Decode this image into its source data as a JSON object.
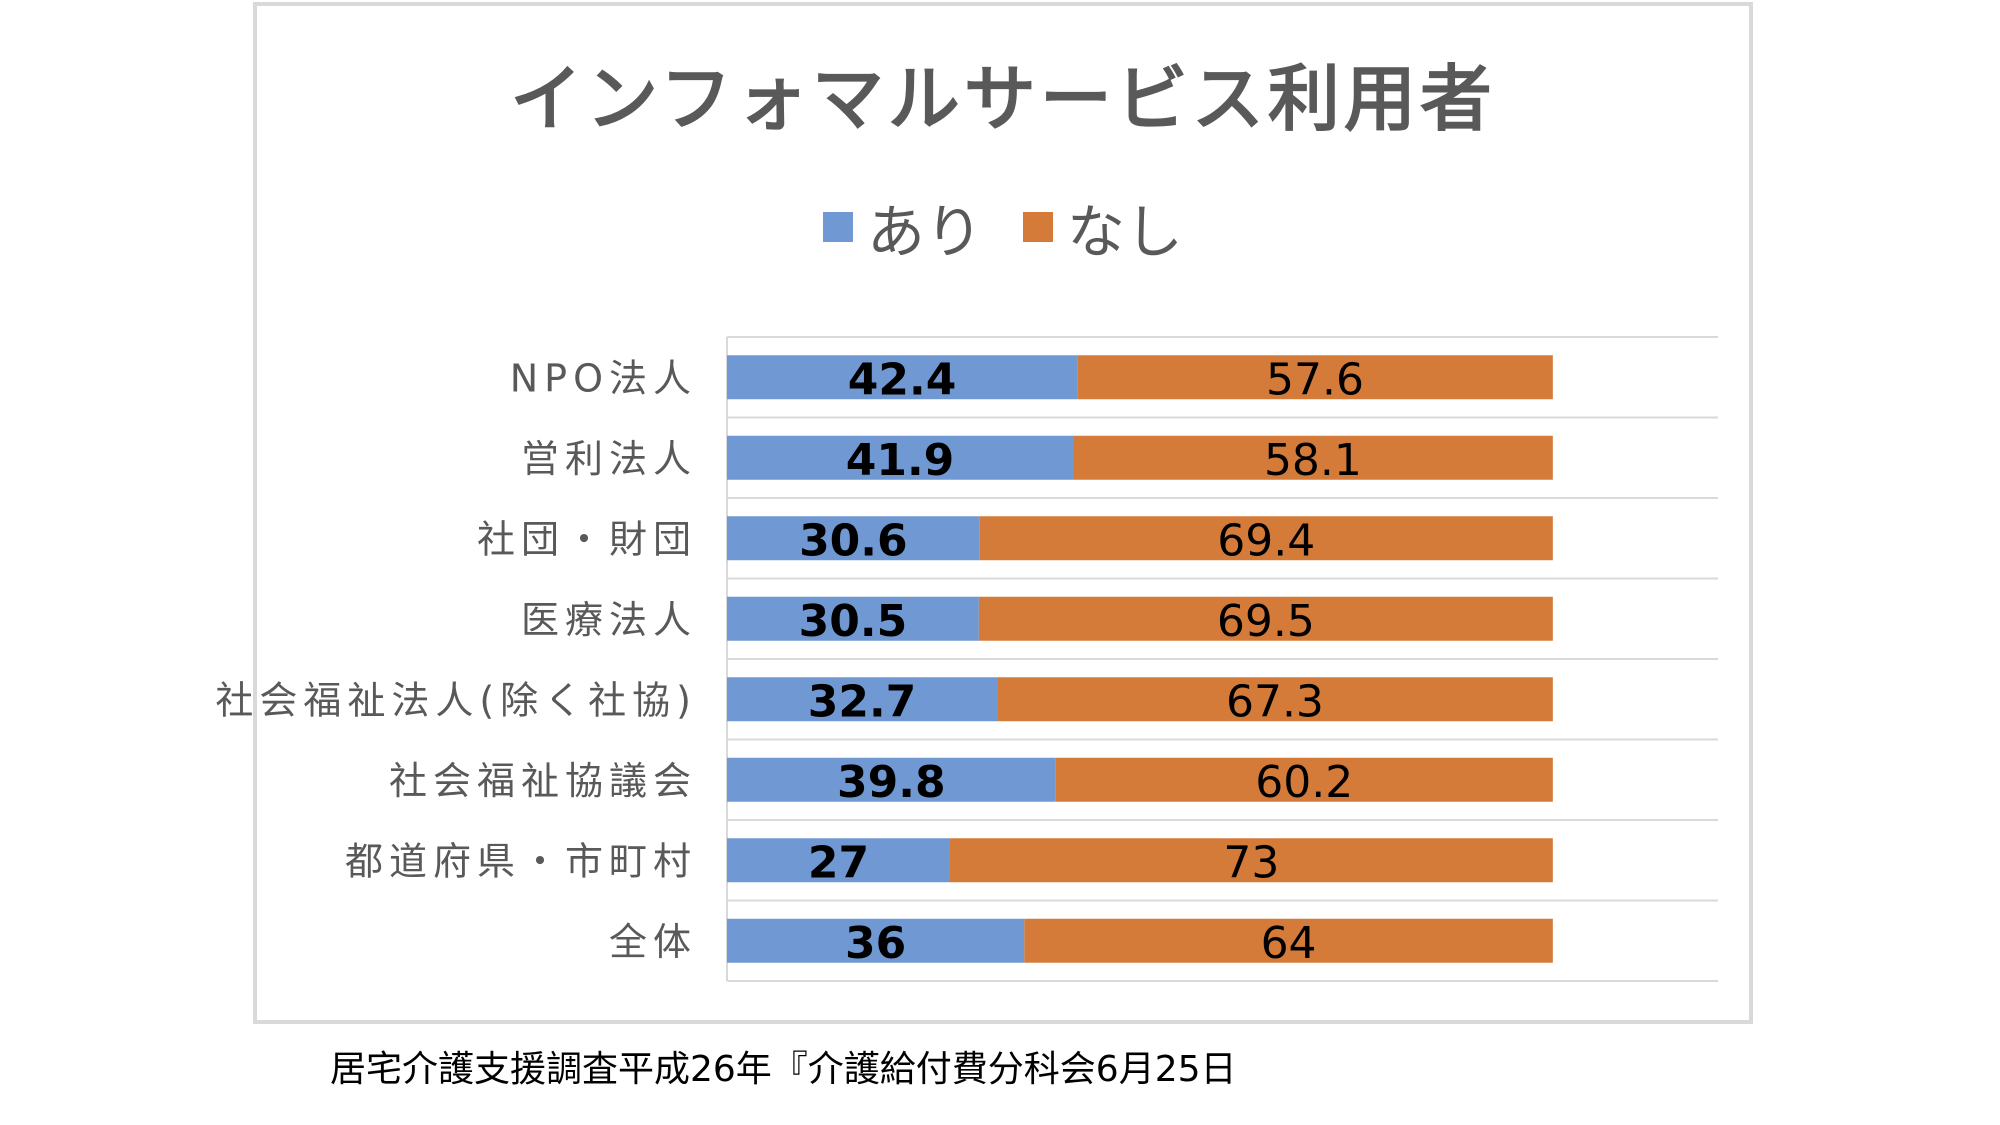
{
  "source_note": "居宅介護支援調査平成26年『介護給付費分科会6月25日",
  "colors": {
    "ari": "#7099d4",
    "nashi": "#d57b39",
    "grid": "#d9d9d9",
    "frame": "#d9d9d9",
    "label": "#595959"
  },
  "chart_data": {
    "type": "bar",
    "orientation": "horizontal",
    "stacked": true,
    "title": "インフォマルサービス利用者",
    "legend": {
      "position": "top"
    },
    "categories": [
      "NPO法人",
      "営利法人",
      "社団・財団",
      "医療法人",
      "社会福祉法人(除く社協)",
      "社会福祉協議会",
      "都道府県・市町村",
      "全体"
    ],
    "series": [
      {
        "name": "あり",
        "color": "#7099d4",
        "values": [
          42.4,
          41.9,
          30.6,
          30.5,
          32.7,
          39.8,
          27,
          36
        ]
      },
      {
        "name": "なし",
        "color": "#d57b39",
        "values": [
          57.6,
          58.1,
          69.4,
          69.5,
          67.3,
          60.2,
          73,
          64
        ]
      }
    ],
    "data_labels": {
      "あり": [
        "42.4",
        "41.9",
        "30.6",
        "30.5",
        "32.7",
        "39.8",
        "27",
        "36"
      ],
      "なし": [
        "57.6",
        "58.1",
        "69.4",
        "69.5",
        "67.3",
        "60.2",
        "73",
        "64"
      ]
    },
    "xlim": [
      0,
      120
    ],
    "grid": true
  }
}
